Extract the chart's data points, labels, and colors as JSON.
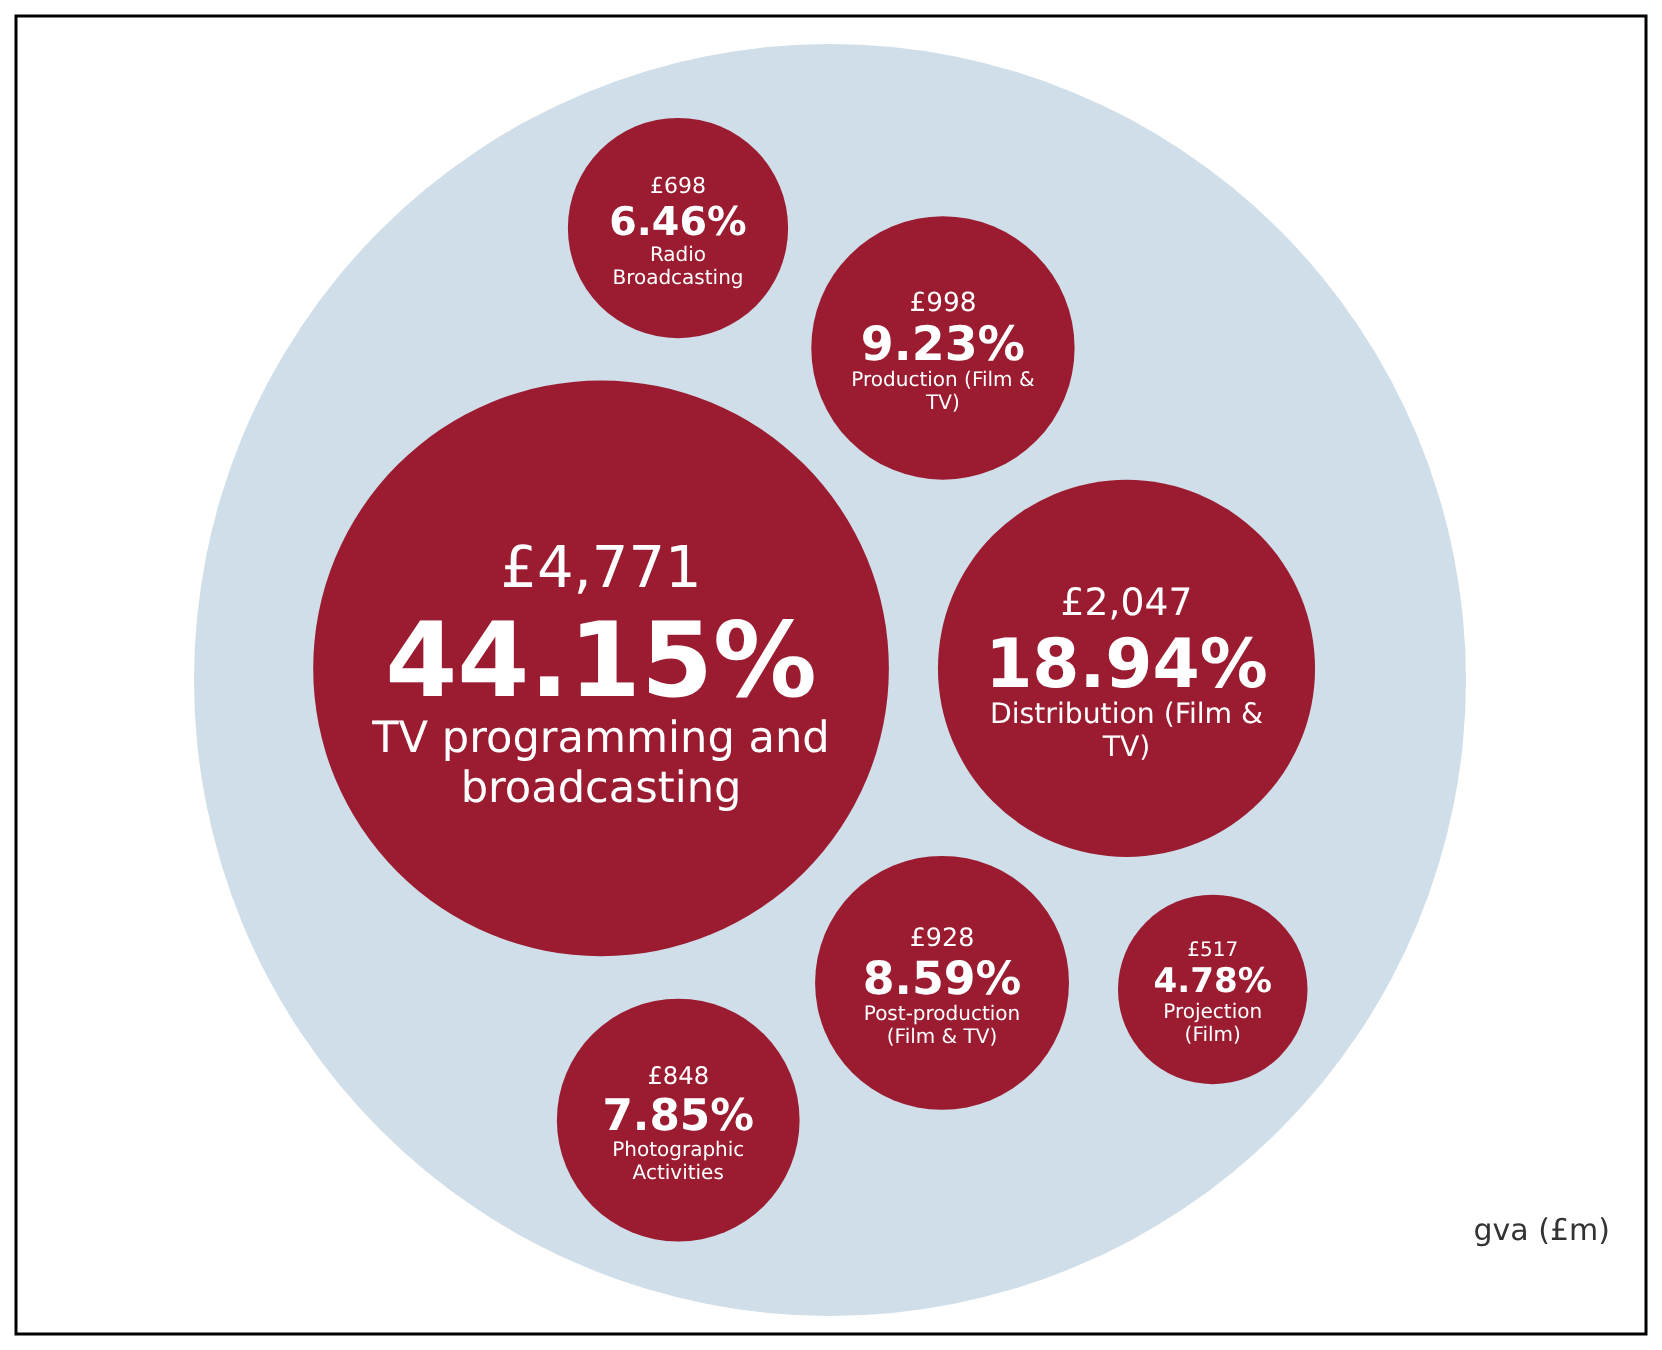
{
  "chart_data": {
    "type": "other",
    "categories": [
      "TV programming and broadcasting",
      "Distribution (Film & TV)",
      "Post-production (Film & TV)",
      "Production (Film & TV)",
      "Photographic Activities",
      "Radio Broadcasting",
      "Projection (Film)"
    ],
    "series": [
      {
        "color": "#9b1b30",
        "values": [
          4771,
          2047,
          928,
          998,
          848,
          698,
          517
        ],
        "value_labels": [
          "£4,771",
          "£2,047",
          "£928",
          "£998",
          "£848",
          "£698",
          "£517"
        ]
      },
      {
        "color": "#ffffff",
        "values": [
          44.15,
          18.94,
          8.59,
          9.23,
          7.85,
          6.46,
          4.78
        ],
        "value_labels": [
          "44.15%",
          "18.94%",
          "8.59%",
          "9.23%",
          "7.85%",
          "6.46%",
          "4.78%"
        ]
      }
    ],
    "annotations": [
      "gva (£m)"
    ]
  }
}
